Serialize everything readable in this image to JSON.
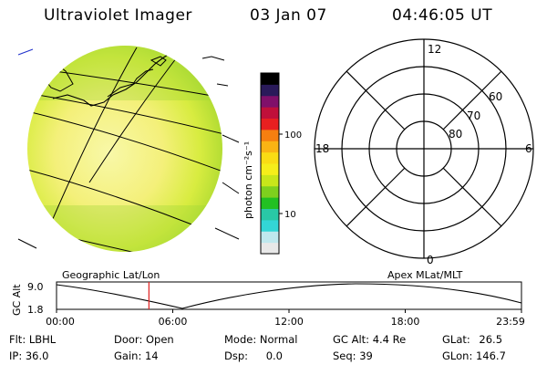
{
  "header": {
    "instrument": "Ultraviolet Imager",
    "date": "03 Jan 07",
    "time": "04:46:05 UT"
  },
  "colorbar": {
    "unit_label": "photon cm⁻²s⁻¹",
    "ticks": [
      {
        "value": 100,
        "label": "100"
      },
      {
        "value": 10,
        "label": "10"
      }
    ],
    "colors": [
      "#e8e8e8",
      "#bfe8ee",
      "#33d6d6",
      "#29c8a6",
      "#22c022",
      "#7ed01e",
      "#c8e61a",
      "#f6ee1a",
      "#fadc14",
      "#fab414",
      "#f67f10",
      "#e82020",
      "#c0103a",
      "#80106a",
      "#2a1a5a",
      "#000000"
    ]
  },
  "polar_plot": {
    "lat_labels": [
      "60",
      "70",
      "80"
    ],
    "mlt_labels": {
      "top": "12",
      "left": "18",
      "right": "6",
      "bottom": "0"
    }
  },
  "timeline": {
    "left_title": "Geographic Lat/Lon",
    "right_title": "Apex MLat/MLT",
    "y_axis_label": "GC Alt",
    "y_ticks": [
      "9.0",
      "1.8"
    ],
    "x_ticks": [
      "00:00",
      "06:00",
      "12:00",
      "18:00",
      "23:59"
    ],
    "current_time_hours": 4.77,
    "marker_color": "#e02020"
  },
  "footer": {
    "flt_label": "Flt:",
    "flt_value": "LBHL",
    "ip_label": "IP:",
    "ip_value": "36.0",
    "door_label": "Door:",
    "door_value": "Open",
    "gain_label": "Gain:",
    "gain_value": "14",
    "mode_label": "Mode:",
    "mode_value": "Normal",
    "dsp_label": "Dsp:",
    "dsp_value": "0.0",
    "gcalt_label": "GC Alt:",
    "gcalt_value": "4.4 Re",
    "seq_label": "Seq:",
    "seq_value": "39",
    "glat_label": "GLat:",
    "glat_value": "26.5",
    "glon_label": "GLon:",
    "glon_value": "146.7"
  }
}
